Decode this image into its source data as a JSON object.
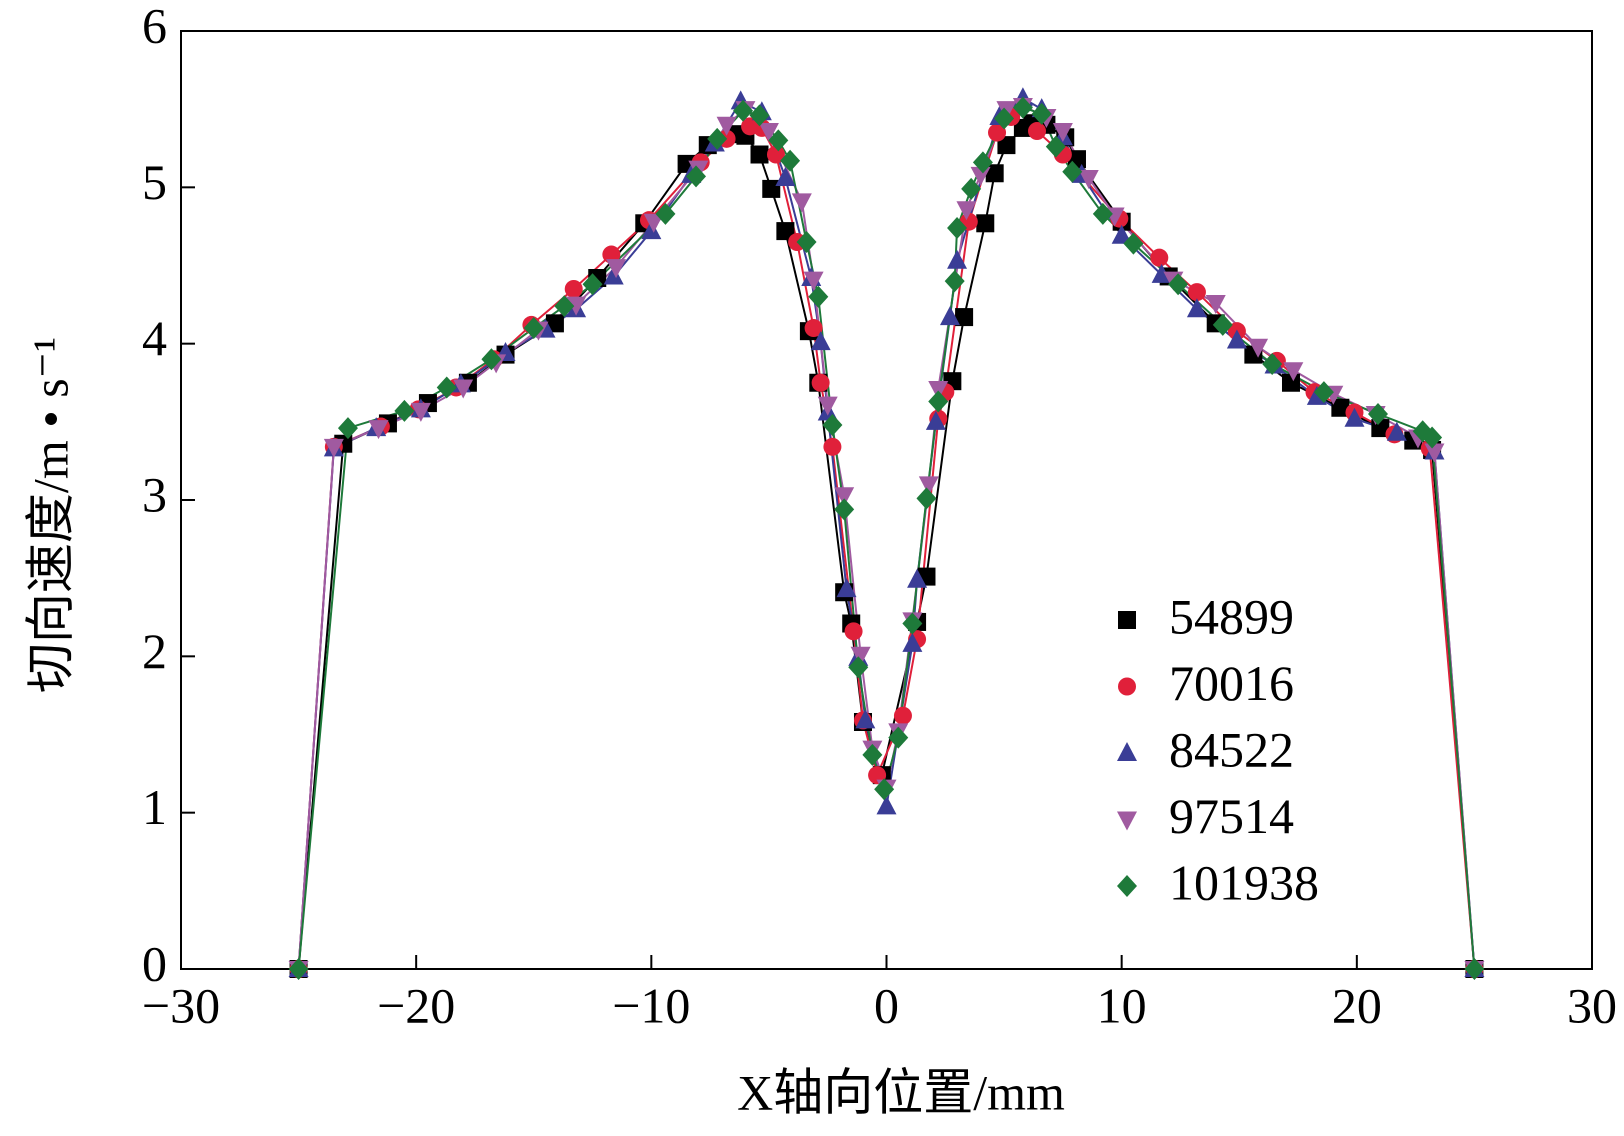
{
  "chart_data": {
    "type": "line",
    "xlabel": "X轴向位置/mm",
    "ylabel": "切向速度/m • s⁻¹",
    "xlim": [
      -30,
      30
    ],
    "xticks": [
      {
        "value": -30,
        "label": "−30"
      },
      {
        "value": -20,
        "label": "−20"
      },
      {
        "value": -10,
        "label": "−10"
      },
      0,
      10,
      20,
      30
    ],
    "ylim": [
      0,
      6
    ],
    "yticks": [
      0,
      1,
      2,
      3,
      4,
      5,
      6
    ],
    "legend": "right",
    "series": [
      {
        "name": "54899",
        "color": "#000000",
        "marker": "square",
        "x": [
          -25,
          -23.1,
          -21.2,
          -19.5,
          -17.8,
          -16.2,
          -14.1,
          -12.3,
          -10.3,
          -8.5,
          -7.6,
          -6.5,
          -6.0,
          -5.4,
          -4.9,
          -4.3,
          -3.3,
          -2.9,
          -1.8,
          -1.5,
          -1.0,
          -0.2,
          1.3,
          1.7,
          2.8,
          3.3,
          4.2,
          4.6,
          5.1,
          5.8,
          6.2,
          6.8,
          7.6,
          8.1,
          10.0,
          12.0,
          14.0,
          15.6,
          17.2,
          19.3,
          21.0,
          22.4,
          23.2,
          25
        ],
        "values": [
          0,
          3.36,
          3.49,
          3.62,
          3.75,
          3.93,
          4.13,
          4.42,
          4.77,
          5.15,
          5.27,
          5.34,
          5.33,
          5.21,
          4.99,
          4.72,
          4.08,
          3.75,
          2.41,
          2.21,
          1.58,
          1.24,
          2.22,
          2.51,
          3.76,
          4.17,
          4.77,
          5.09,
          5.27,
          5.38,
          5.41,
          5.4,
          5.32,
          5.18,
          4.78,
          4.43,
          4.13,
          3.93,
          3.75,
          3.59,
          3.46,
          3.38,
          3.32,
          0
        ]
      },
      {
        "name": "70016",
        "color": "#e0203a",
        "marker": "circle",
        "x": [
          -25,
          -23.5,
          -21.5,
          -19.9,
          -18.3,
          -16.7,
          -15.1,
          -13.3,
          -11.7,
          -10.1,
          -7.9,
          -6.8,
          -5.8,
          -5.3,
          -4.7,
          -3.8,
          -3.1,
          -2.8,
          -2.3,
          -1.4,
          -1.0,
          -0.4,
          0.7,
          1.3,
          2.2,
          2.5,
          3.5,
          4.7,
          5.3,
          6.4,
          7.5,
          9.9,
          11.6,
          13.2,
          14.9,
          16.6,
          18.2,
          19.9,
          21.6,
          23.1,
          25
        ],
        "values": [
          0,
          3.34,
          3.47,
          3.58,
          3.72,
          3.9,
          4.12,
          4.35,
          4.57,
          4.79,
          5.16,
          5.31,
          5.39,
          5.38,
          5.21,
          4.65,
          4.1,
          3.75,
          3.34,
          2.16,
          1.59,
          1.24,
          1.62,
          2.11,
          3.52,
          3.69,
          4.78,
          5.35,
          5.45,
          5.36,
          5.21,
          4.8,
          4.55,
          4.33,
          4.08,
          3.89,
          3.69,
          3.56,
          3.42,
          3.33,
          0
        ]
      },
      {
        "name": "84522",
        "color": "#3a3d96",
        "marker": "triangle",
        "x": [
          -25,
          -23.5,
          -21.7,
          -19.8,
          -18.1,
          -16.2,
          -14.5,
          -13.2,
          -11.6,
          -10.0,
          -8.3,
          -7.3,
          -6.2,
          -5.3,
          -4.3,
          -3.2,
          -2.8,
          -2.5,
          -1.7,
          -1.2,
          -0.9,
          0,
          1.1,
          1.3,
          2.1,
          2.7,
          3.0,
          4.8,
          5.8,
          6.6,
          7.5,
          8.3,
          10.0,
          11.7,
          13.2,
          14.9,
          16.5,
          18.3,
          19.9,
          21.7,
          23.3,
          25
        ],
        "values": [
          0,
          3.33,
          3.46,
          3.58,
          3.74,
          3.94,
          4.09,
          4.22,
          4.43,
          4.72,
          5.08,
          5.28,
          5.55,
          5.48,
          5.06,
          4.42,
          4.01,
          3.56,
          2.43,
          1.99,
          1.59,
          1.04,
          2.08,
          2.49,
          3.5,
          4.17,
          4.53,
          5.45,
          5.57,
          5.5,
          5.32,
          5.08,
          4.69,
          4.44,
          4.22,
          4.02,
          3.86,
          3.66,
          3.52,
          3.43,
          3.31,
          0
        ]
      },
      {
        "name": "97514",
        "color": "#a05aa0",
        "marker": "triangle-down",
        "x": [
          -25,
          -23.5,
          -21.6,
          -19.8,
          -18.0,
          -16.6,
          -14.8,
          -13.2,
          -11.5,
          -9.9,
          -8.0,
          -6.8,
          -6.0,
          -5.0,
          -3.6,
          -3.1,
          -2.5,
          -1.8,
          -1.1,
          -0.6,
          0,
          0.5,
          1.1,
          1.8,
          2.2,
          3.4,
          4.0,
          5.1,
          5.8,
          6.8,
          7.5,
          8.6,
          9.7,
          12.2,
          14.0,
          15.8,
          17.3,
          19.0,
          20.8,
          22.6,
          23.3,
          25
        ],
        "values": [
          0,
          3.34,
          3.46,
          3.57,
          3.72,
          3.88,
          4.09,
          4.25,
          4.49,
          4.78,
          5.12,
          5.4,
          5.5,
          5.36,
          4.91,
          4.41,
          3.61,
          3.03,
          2.01,
          1.41,
          1.16,
          1.52,
          2.23,
          3.1,
          3.71,
          4.86,
          5.08,
          5.5,
          5.52,
          5.45,
          5.36,
          5.06,
          4.82,
          4.41,
          4.26,
          3.98,
          3.83,
          3.68,
          3.55,
          3.4,
          3.31,
          0
        ]
      },
      {
        "name": "101938",
        "color": "#1e7a3a",
        "marker": "diamond",
        "x": [
          -25,
          -22.9,
          -20.5,
          -18.7,
          -16.8,
          -15.0,
          -13.7,
          -12.5,
          -9.4,
          -8.1,
          -7.2,
          -6.1,
          -5.4,
          -4.6,
          -4.1,
          -3.4,
          -2.9,
          -2.3,
          -1.8,
          -1.2,
          -0.6,
          -0.1,
          0.5,
          1.1,
          1.7,
          2.2,
          2.9,
          3.0,
          3.6,
          4.1,
          5.0,
          5.8,
          6.6,
          7.2,
          7.9,
          9.2,
          10.5,
          12.4,
          14.3,
          16.4,
          18.6,
          20.9,
          22.8,
          23.2,
          25
        ],
        "values": [
          0,
          3.46,
          3.57,
          3.72,
          3.9,
          4.1,
          4.24,
          4.38,
          4.83,
          5.07,
          5.31,
          5.49,
          5.46,
          5.3,
          5.17,
          4.65,
          4.3,
          3.48,
          2.94,
          1.93,
          1.37,
          1.15,
          1.48,
          2.21,
          3.01,
          3.63,
          4.4,
          4.74,
          4.99,
          5.16,
          5.44,
          5.51,
          5.47,
          5.26,
          5.1,
          4.83,
          4.64,
          4.38,
          4.12,
          3.87,
          3.69,
          3.55,
          3.44,
          3.4,
          0
        ]
      }
    ]
  }
}
